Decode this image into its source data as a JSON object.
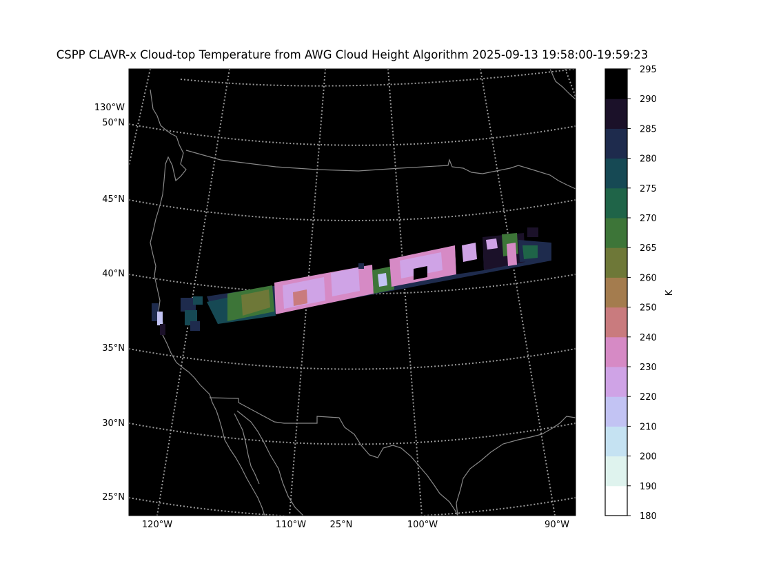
{
  "title": "CSPP CLAVR-x Cloud-top Temperature from AWG Cloud Height Algorithm 2025-09-13 19:58:00-19:59:23",
  "map": {
    "background": "#000000",
    "coastline_color": "#888888",
    "graticule_color": "#9a9a9a",
    "graticule_style": "dotted",
    "left_labels": [
      "130°W",
      "50°N",
      "45°N",
      "40°N",
      "35°N",
      "30°N",
      "25°N"
    ],
    "bottom_labels": [
      "120°W",
      "110°W",
      "25°N",
      "100°W",
      "90°W"
    ]
  },
  "colorbar": {
    "unit": "K",
    "tick_labels": [
      "180",
      "190",
      "200",
      "210",
      "220",
      "230",
      "240",
      "250",
      "260",
      "265",
      "270",
      "275",
      "280",
      "285",
      "290",
      "295"
    ],
    "colors": [
      "#ffffff",
      "#dff3ee",
      "#c5e2f2",
      "#c2c3f3",
      "#cfa3e6",
      "#d68ac5",
      "#c97b7e",
      "#a47c4e",
      "#6e7838",
      "#3d7538",
      "#1f6448",
      "#164954",
      "#1e2b4d",
      "#1b1129",
      "#000000"
    ]
  }
}
